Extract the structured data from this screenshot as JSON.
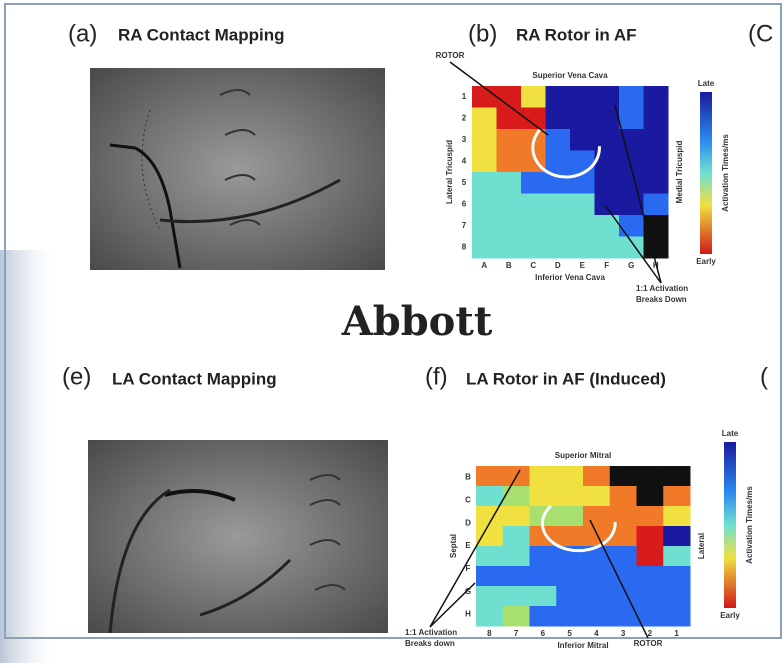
{
  "panels": {
    "a": {
      "label": "(a)",
      "title": "RA Contact Mapping"
    },
    "b": {
      "label": "(b)",
      "title": "RA Rotor in AF"
    },
    "c": {
      "label": "(C"
    },
    "e": {
      "label": "(e)",
      "title": "LA Contact Mapping"
    },
    "f": {
      "label": "(f)",
      "title": "LA Rotor in AF (Induced)"
    },
    "g": {
      "label": "("
    }
  },
  "watermark": "Abbott",
  "map_b": {
    "rotor": "ROTOR",
    "top": "Superior Vena Cava",
    "bottom": "Inferior Vena Cava",
    "left": "Lateral Tricuspid",
    "right": "Medial Tricuspid",
    "rows": [
      "1",
      "2",
      "3",
      "4",
      "5",
      "6",
      "7",
      "8"
    ],
    "columns": [
      "A",
      "B",
      "C",
      "D",
      "E",
      "F",
      "G",
      "H"
    ],
    "note": [
      "1:1 Activation",
      "Breaks Down"
    ],
    "scale": {
      "high": "Late",
      "low": "Early",
      "label": "Activation Times/ms"
    }
  },
  "map_f": {
    "rotor": "ROTOR",
    "top": "Superior Mitral",
    "bottom": "Inferior Mitral",
    "left": "Septal",
    "right": "Lateral",
    "rows": [
      "B",
      "C",
      "D",
      "E",
      "F",
      "G",
      "H"
    ],
    "columns": [
      "8",
      "7",
      "6",
      "5",
      "4",
      "3",
      "2",
      "1"
    ],
    "note": [
      "1:1 Activation",
      "Breaks down"
    ],
    "scale": {
      "high": "Late",
      "low": "Early",
      "label": "Activation Times/ms"
    }
  }
}
